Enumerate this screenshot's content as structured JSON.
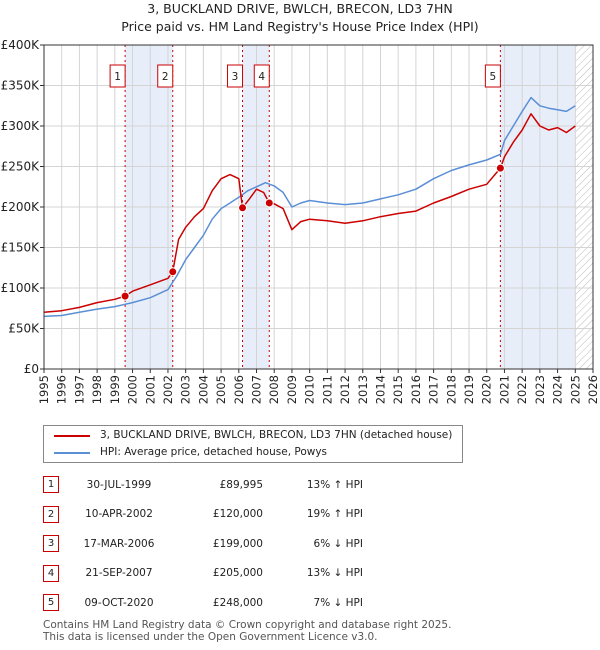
{
  "title_line1": "3, BUCKLAND DRIVE, BWLCH, BRECON, LD3 7HN",
  "title_line2": "Price paid vs. HM Land Registry's House Price Index (HPI)",
  "colors": {
    "property": "#cc0000",
    "hpi": "#5a8fd6",
    "shade": "#e8eef9",
    "grid": "#d4d4d4"
  },
  "chart_data": {
    "type": "line",
    "y_ticks": [
      "£0",
      "£50K",
      "£100K",
      "£150K",
      "£200K",
      "£250K",
      "£300K",
      "£350K",
      "£400K"
    ],
    "x_ticks": [
      "1995",
      "1996",
      "1997",
      "1998",
      "1999",
      "2000",
      "2001",
      "2002",
      "2003",
      "2004",
      "2005",
      "2006",
      "2007",
      "2008",
      "2009",
      "2010",
      "2011",
      "2012",
      "2013",
      "2014",
      "2015",
      "2016",
      "2017",
      "2018",
      "2019",
      "2020",
      "2021",
      "2022",
      "2023",
      "2024",
      "2025",
      "2026"
    ],
    "xlim": [
      1995,
      2026
    ],
    "ylim": [
      0,
      400000
    ],
    "sale_markers": [
      {
        "label": "1",
        "year": 1999.58,
        "price": 89995
      },
      {
        "label": "2",
        "year": 2002.27,
        "price": 120000
      },
      {
        "label": "3",
        "year": 2006.21,
        "price": 199000
      },
      {
        "label": "4",
        "year": 2007.72,
        "price": 205000
      },
      {
        "label": "5",
        "year": 2020.77,
        "price": 248000
      }
    ],
    "shaded_ranges": [
      [
        1999.58,
        2002.27
      ],
      [
        2006.21,
        2007.72
      ],
      [
        2020.77,
        2025.0
      ]
    ],
    "hatched_from": 2025.0,
    "series": [
      {
        "name": "3, BUCKLAND DRIVE, BWLCH, BRECON, LD3 7HN (detached house)",
        "color": "#cc0000",
        "points": [
          [
            1995,
            70000
          ],
          [
            1996,
            72000
          ],
          [
            1997,
            76000
          ],
          [
            1998,
            82000
          ],
          [
            1999,
            86000
          ],
          [
            1999.58,
            89995
          ],
          [
            2000,
            96000
          ],
          [
            2001,
            104000
          ],
          [
            2002,
            112000
          ],
          [
            2002.27,
            120000
          ],
          [
            2002.6,
            160000
          ],
          [
            2003,
            175000
          ],
          [
            2003.5,
            188000
          ],
          [
            2004,
            198000
          ],
          [
            2004.5,
            220000
          ],
          [
            2005,
            235000
          ],
          [
            2005.5,
            240000
          ],
          [
            2006,
            235000
          ],
          [
            2006.21,
            199000
          ],
          [
            2006.6,
            210000
          ],
          [
            2007,
            222000
          ],
          [
            2007.4,
            218000
          ],
          [
            2007.72,
            205000
          ],
          [
            2008,
            204000
          ],
          [
            2008.5,
            198000
          ],
          [
            2009,
            172000
          ],
          [
            2009.5,
            182000
          ],
          [
            2010,
            185000
          ],
          [
            2011,
            183000
          ],
          [
            2012,
            180000
          ],
          [
            2013,
            183000
          ],
          [
            2014,
            188000
          ],
          [
            2015,
            192000
          ],
          [
            2016,
            195000
          ],
          [
            2017,
            205000
          ],
          [
            2018,
            213000
          ],
          [
            2019,
            222000
          ],
          [
            2020,
            228000
          ],
          [
            2020.77,
            248000
          ],
          [
            2021,
            262000
          ],
          [
            2021.5,
            280000
          ],
          [
            2022,
            295000
          ],
          [
            2022.5,
            315000
          ],
          [
            2023,
            300000
          ],
          [
            2023.5,
            295000
          ],
          [
            2024,
            298000
          ],
          [
            2024.5,
            292000
          ],
          [
            2025,
            300000
          ]
        ]
      },
      {
        "name": "HPI: Average price, detached house, Powys",
        "color": "#5a8fd6",
        "points": [
          [
            1995,
            65000
          ],
          [
            1996,
            66000
          ],
          [
            1997,
            70000
          ],
          [
            1998,
            74000
          ],
          [
            1999,
            77000
          ],
          [
            2000,
            82000
          ],
          [
            2001,
            88000
          ],
          [
            2002,
            98000
          ],
          [
            2002.5,
            115000
          ],
          [
            2003,
            135000
          ],
          [
            2003.5,
            150000
          ],
          [
            2004,
            165000
          ],
          [
            2004.5,
            185000
          ],
          [
            2005,
            198000
          ],
          [
            2005.5,
            205000
          ],
          [
            2006,
            212000
          ],
          [
            2006.5,
            220000
          ],
          [
            2007,
            225000
          ],
          [
            2007.5,
            230000
          ],
          [
            2008,
            226000
          ],
          [
            2008.5,
            218000
          ],
          [
            2009,
            200000
          ],
          [
            2009.5,
            205000
          ],
          [
            2010,
            208000
          ],
          [
            2011,
            205000
          ],
          [
            2012,
            203000
          ],
          [
            2013,
            205000
          ],
          [
            2014,
            210000
          ],
          [
            2015,
            215000
          ],
          [
            2016,
            222000
          ],
          [
            2017,
            235000
          ],
          [
            2018,
            245000
          ],
          [
            2019,
            252000
          ],
          [
            2020,
            258000
          ],
          [
            2020.77,
            265000
          ],
          [
            2021,
            282000
          ],
          [
            2021.5,
            300000
          ],
          [
            2022,
            318000
          ],
          [
            2022.5,
            335000
          ],
          [
            2023,
            325000
          ],
          [
            2023.5,
            322000
          ],
          [
            2024,
            320000
          ],
          [
            2024.5,
            318000
          ],
          [
            2025,
            325000
          ]
        ]
      }
    ]
  },
  "legend": {
    "property_label": "3, BUCKLAND DRIVE, BWLCH, BRECON, LD3 7HN (detached house)",
    "hpi_label": "HPI: Average price, detached house, Powys"
  },
  "sales": [
    {
      "num": "1",
      "date": "30-JUL-1999",
      "price": "£89,995",
      "hpi": "13% ↑ HPI"
    },
    {
      "num": "2",
      "date": "10-APR-2002",
      "price": "£120,000",
      "hpi": "19% ↑ HPI"
    },
    {
      "num": "3",
      "date": "17-MAR-2006",
      "price": "£199,000",
      "hpi": "6% ↓ HPI"
    },
    {
      "num": "4",
      "date": "21-SEP-2007",
      "price": "£205,000",
      "hpi": "13% ↓ HPI"
    },
    {
      "num": "5",
      "date": "09-OCT-2020",
      "price": "£248,000",
      "hpi": "7% ↓ HPI"
    }
  ],
  "footer_line1": "Contains HM Land Registry data © Crown copyright and database right 2025.",
  "footer_line2": "This data is licensed under the Open Government Licence v3.0."
}
